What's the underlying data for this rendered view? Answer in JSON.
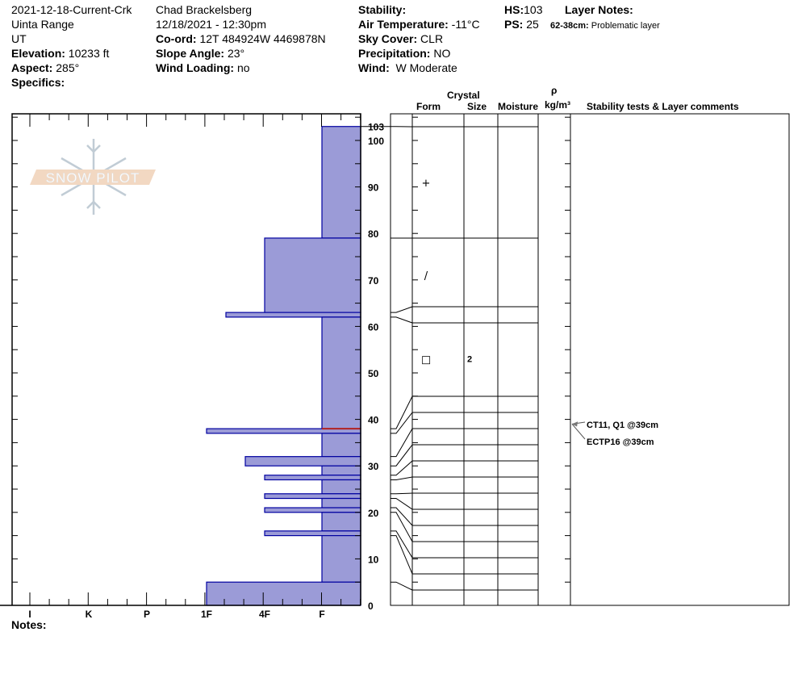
{
  "header": {
    "col1": {
      "name": "2021-12-18-Current-Crk",
      "range": "Uinta Range",
      "state": "UT",
      "elevation_label": "Elevation:",
      "elevation": "10233 ft",
      "aspect_label": "Aspect:",
      "aspect": "285°",
      "specifics_label": "Specifics:"
    },
    "col2": {
      "observer": "Chad Brackelsberg",
      "datetime": "12/18/2021 - 12:30pm",
      "coord_label": "Co-ord:",
      "coord": "12T 484924W 4469878N",
      "slope_label": "Slope Angle:",
      "slope": "23°",
      "wind_loading_label": "Wind Loading:",
      "wind_loading": "no"
    },
    "col3": {
      "stability_label": "Stability:",
      "air_temp_label": "Air Temperature:",
      "air_temp": "-11°C",
      "sky_label": "Sky Cover:",
      "sky": "CLR",
      "precip_label": "Precipitation:",
      "precip": "NO",
      "wind_label": "Wind:",
      "wind": "W Moderate"
    },
    "col4": {
      "hs_label": "HS:",
      "hs": "103",
      "ps_label": "PS:",
      "ps": "25",
      "layer_notes_label": "Layer Notes:",
      "layer_note_range": "62-38cm:",
      "layer_note_text": "Problematic layer"
    }
  },
  "logo": {
    "text": "SNOW PILOT"
  },
  "table_header": {
    "crystal": "Crystal",
    "form": "Form",
    "size": "Size",
    "moisture": "Moisture",
    "rho": "ρ",
    "density_unit": "kg/m³",
    "comments": "Stability tests & Layer comments"
  },
  "notes_label": "Notes:",
  "chart_data": {
    "type": "snow-profile",
    "hs": 103,
    "depth_ticks": [
      0,
      10,
      20,
      30,
      40,
      50,
      60,
      70,
      80,
      90,
      100
    ],
    "top_label": "103",
    "hardness_axis": [
      "I",
      "K",
      "P",
      "1F",
      "4F",
      "F"
    ],
    "hardness_color": "#9b9bd7",
    "hardness_edge": "#0000a0",
    "layers": [
      {
        "bottom": 79,
        "top": 103,
        "hardness": "F"
      },
      {
        "bottom": 63,
        "top": 79,
        "hardness": "4F"
      },
      {
        "bottom": 62,
        "top": 63,
        "hardness": "1F-"
      },
      {
        "bottom": 38,
        "top": 62,
        "hardness": "F"
      },
      {
        "bottom": 37,
        "top": 38,
        "hardness": "1F"
      },
      {
        "bottom": 32,
        "top": 37,
        "hardness": "F"
      },
      {
        "bottom": 30,
        "top": 32,
        "hardness": "4F+"
      },
      {
        "bottom": 28,
        "top": 30,
        "hardness": "F"
      },
      {
        "bottom": 27,
        "top": 28,
        "hardness": "4F"
      },
      {
        "bottom": 24,
        "top": 27,
        "hardness": "F"
      },
      {
        "bottom": 23,
        "top": 24,
        "hardness": "4F"
      },
      {
        "bottom": 21,
        "top": 23,
        "hardness": "F"
      },
      {
        "bottom": 20,
        "top": 21,
        "hardness": "4F"
      },
      {
        "bottom": 16,
        "top": 20,
        "hardness": "F"
      },
      {
        "bottom": 15,
        "top": 16,
        "hardness": "4F"
      },
      {
        "bottom": 5,
        "top": 15,
        "hardness": "F"
      },
      {
        "bottom": 0,
        "top": 5,
        "hardness": "1F"
      }
    ],
    "layer_of_concern_cm": 38,
    "concern_color": "#b22222",
    "crystals": [
      {
        "depth": 91,
        "form": "+",
        "size": ""
      },
      {
        "depth": 71,
        "form": "/",
        "size": ""
      },
      {
        "depth": 53,
        "form": "□",
        "size": "2"
      }
    ],
    "stability_tests": [
      {
        "depth": 39,
        "text": "CT11, Q1 @39cm"
      },
      {
        "depth": 39,
        "text": "ECTP16 @39cm"
      }
    ]
  }
}
